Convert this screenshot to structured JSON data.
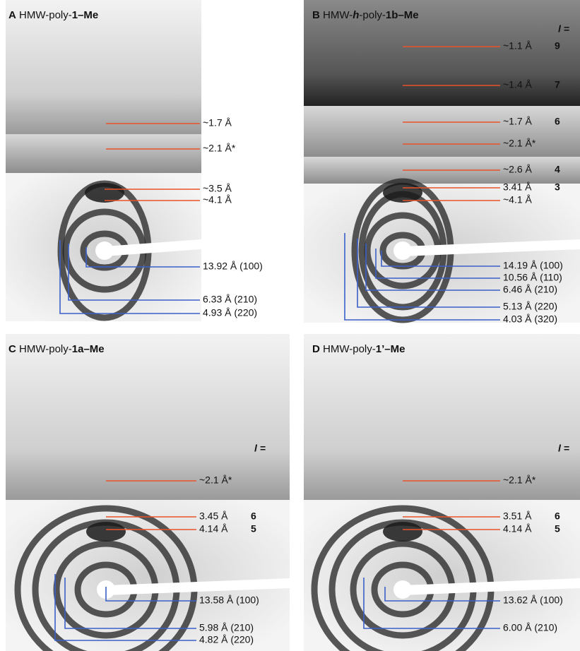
{
  "panels": [
    {
      "letter": "A",
      "title": [
        {
          "text": "HMW-poly-",
          "bold": false
        },
        {
          "text": "1",
          "bold": true
        },
        {
          "text": "–Me",
          "bold": true
        }
      ],
      "lines": [
        {
          "label": "~1.7 Å",
          "color": "#e8532a"
        },
        {
          "label": "~2.1 Å*",
          "color": "#e8532a"
        },
        {
          "label": "~3.5 Å",
          "color": "#e8532a"
        },
        {
          "label": "~4.1 Å",
          "color": "#e8532a"
        },
        {
          "label": "13.92 Å (100)",
          "color": "#3a5fc8"
        },
        {
          "label": "6.33 Å (210)",
          "color": "#3a5fc8"
        },
        {
          "label": "4.93 Å (220)",
          "color": "#3a5fc8"
        }
      ]
    },
    {
      "letter": "B",
      "title": [
        {
          "text": "HMW-",
          "bold": false
        },
        {
          "text": "h",
          "bold": true
        },
        {
          "text": "-poly-",
          "bold": false
        },
        {
          "text": "1b",
          "bold": true
        },
        {
          "text": "–Me",
          "bold": true
        }
      ],
      "layer_header": "l =",
      "lines": [
        {
          "label": "~1.1 Å",
          "layer": "9",
          "color": "#e8532a"
        },
        {
          "label": "~1.4 Å",
          "layer": "7",
          "color": "#e8532a"
        },
        {
          "label": "~1.7 Å",
          "layer": "6",
          "color": "#e8532a"
        },
        {
          "label": "~2.1 Å*",
          "color": "#e8532a"
        },
        {
          "label": "~2.6 Å",
          "layer": "4",
          "color": "#e8532a"
        },
        {
          "label": "3.41 Å",
          "layer": "3",
          "color": "#e8532a"
        },
        {
          "label": "~4.1 Å",
          "color": "#e8532a"
        },
        {
          "label": "14.19 Å (100)",
          "color": "#3a5fc8"
        },
        {
          "label": "10.56 Å (110)",
          "color": "#3a5fc8"
        },
        {
          "label": "6.46 Å (210)",
          "color": "#3a5fc8"
        },
        {
          "label": "5.13 Å (220)",
          "color": "#3a5fc8"
        },
        {
          "label": "4.03 Å (320)",
          "color": "#3a5fc8"
        }
      ]
    },
    {
      "letter": "C",
      "title": [
        {
          "text": "HMW-poly-",
          "bold": false
        },
        {
          "text": "1a",
          "bold": true
        },
        {
          "text": "–Me",
          "bold": true
        }
      ],
      "layer_header": "l =",
      "lines": [
        {
          "label": "~2.1 Å*",
          "color": "#e8532a"
        },
        {
          "label": "3.45 Å",
          "layer": "6",
          "color": "#e8532a"
        },
        {
          "label": "4.14 Å",
          "layer": "5",
          "color": "#e8532a"
        },
        {
          "label": "13.58 Å (100)",
          "color": "#3a5fc8"
        },
        {
          "label": "5.98 Å (210)",
          "color": "#3a5fc8"
        },
        {
          "label": "4.82 Å (220)",
          "color": "#3a5fc8"
        }
      ]
    },
    {
      "letter": "D",
      "title": [
        {
          "text": "HMW-poly-",
          "bold": false
        },
        {
          "text": "1’",
          "bold": true
        },
        {
          "text": "–Me",
          "bold": true
        }
      ],
      "layer_header": "l =",
      "lines": [
        {
          "label": "~2.1 Å*",
          "color": "#e8532a"
        },
        {
          "label": "3.51 Å",
          "layer": "6",
          "color": "#e8532a"
        },
        {
          "label": "4.14 Å",
          "layer": "5",
          "color": "#e8532a"
        },
        {
          "label": "13.62 Å (100)",
          "color": "#3a5fc8"
        },
        {
          "label": "6.00 Å (210)",
          "color": "#3a5fc8"
        }
      ]
    }
  ]
}
